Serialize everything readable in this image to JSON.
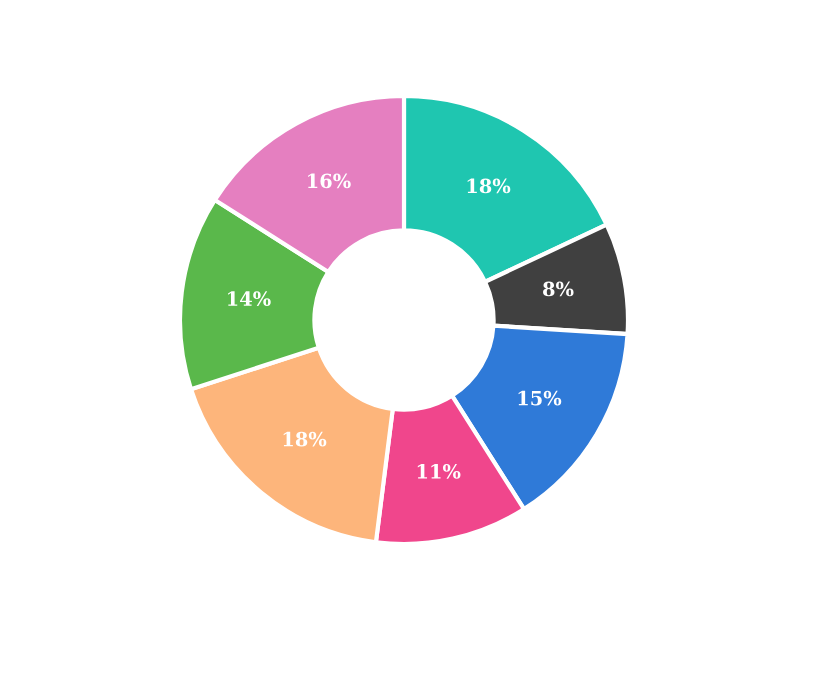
{
  "chart_data": {
    "type": "donut",
    "categories": [
      null,
      null,
      null,
      null,
      null,
      null,
      null
    ],
    "values": [
      18,
      8,
      15,
      11,
      18,
      14,
      16
    ],
    "colors": [
      "#1fc6b0",
      "#404040",
      "#2f7ad8",
      "#f0468c",
      "#fdb57b",
      "#5ab84b",
      "#e57fc0"
    ],
    "value_labels": [
      "18%",
      "8%",
      "15%",
      "11%",
      "18%",
      "14%",
      "16%"
    ]
  }
}
